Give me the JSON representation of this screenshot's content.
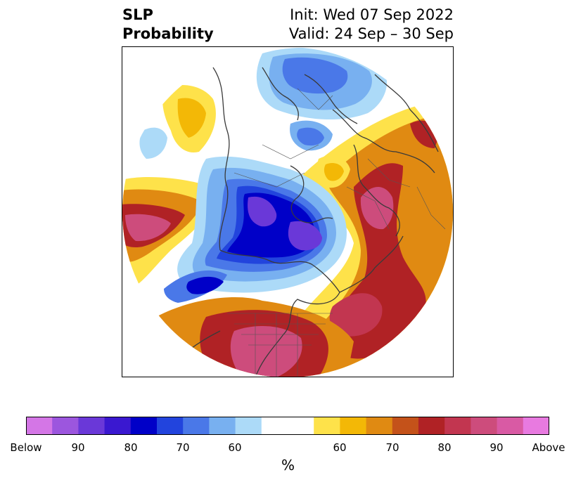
{
  "title": {
    "left_line1": "SLP",
    "left_line2": "Probability",
    "right_line1": "Init: Wed 07 Sep 2022",
    "right_line2": "Valid: 24 Sep – 30 Sep"
  },
  "colorbar": {
    "colors": [
      "#d476e6",
      "#9c56de",
      "#6a38d8",
      "#3a18d0",
      "#0000c8",
      "#2244dd",
      "#4a78e8",
      "#78b0f0",
      "#acdaf8",
      "#ffffff",
      "#ffffff",
      "#fee24a",
      "#f3b806",
      "#e08a12",
      "#c4521a",
      "#b02225",
      "#c23650",
      "#cd4c7c",
      "#d95aa4",
      "#e87ae0"
    ],
    "tick_labels": [
      "Below",
      "90",
      "80",
      "70",
      "60",
      "60",
      "70",
      "80",
      "90",
      "Above"
    ],
    "unit_label": "%"
  }
}
